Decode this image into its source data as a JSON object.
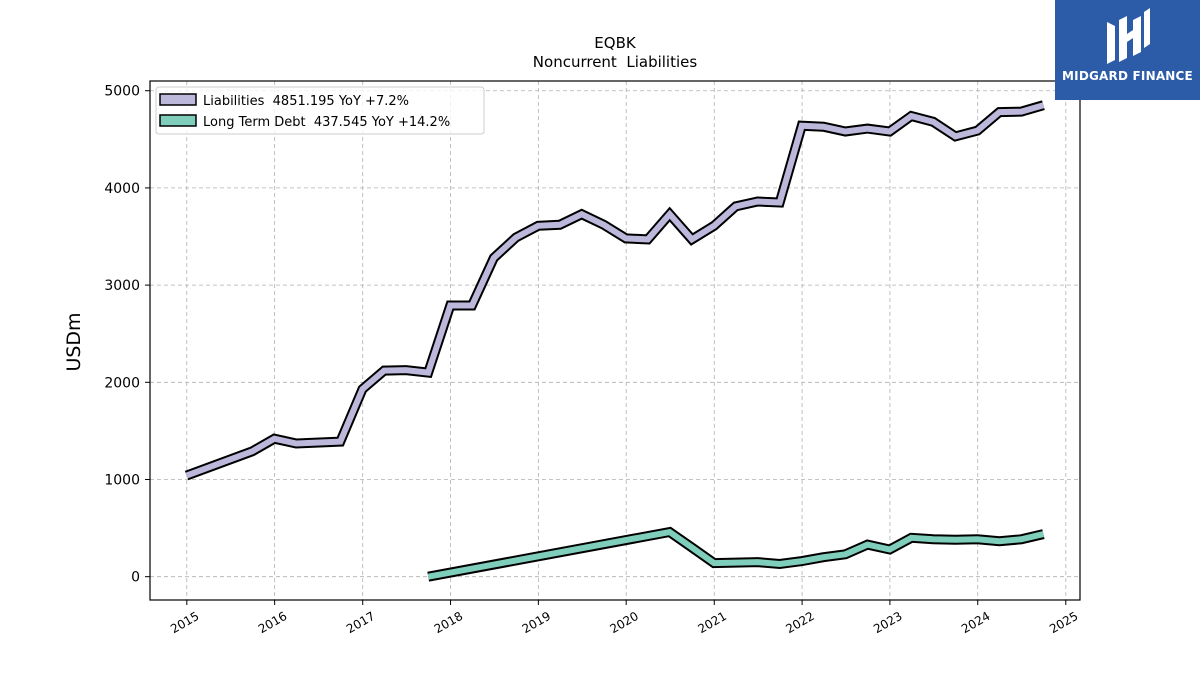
{
  "chart_data": {
    "type": "line",
    "title": "EQBK",
    "subtitle": "Noncurrent  Liabilities",
    "xlabel": "",
    "ylabel": "USDm",
    "xlim": [
      "2014-08-01",
      "2025-03-01"
    ],
    "ylim": [
      -240,
      5100
    ],
    "x_ticks": [
      "2015",
      "2016",
      "2017",
      "2018",
      "2019",
      "2020",
      "2021",
      "2022",
      "2023",
      "2024",
      "2025"
    ],
    "y_ticks": [
      "0",
      "1000",
      "2000",
      "3000",
      "4000",
      "5000"
    ],
    "grid": true,
    "legend_position": "top-left",
    "series": [
      {
        "name": "Liabilities",
        "legend_label": "Liabilities  4851.195 YoY +7.2%",
        "color": "#bcb8dc",
        "points": [
          [
            "2014-12-31",
            1040
          ],
          [
            "2015-09-30",
            1290
          ],
          [
            "2015-12-31",
            1420
          ],
          [
            "2016-03-31",
            1370
          ],
          [
            "2016-09-30",
            1390
          ],
          [
            "2016-12-31",
            1930
          ],
          [
            "2017-03-31",
            2120
          ],
          [
            "2017-06-30",
            2125
          ],
          [
            "2017-09-30",
            2100
          ],
          [
            "2017-12-31",
            2790
          ],
          [
            "2018-03-31",
            2790
          ],
          [
            "2018-06-30",
            3280
          ],
          [
            "2018-09-30",
            3490
          ],
          [
            "2018-12-31",
            3610
          ],
          [
            "2019-03-31",
            3620
          ],
          [
            "2019-06-30",
            3730
          ],
          [
            "2019-09-30",
            3620
          ],
          [
            "2019-12-31",
            3480
          ],
          [
            "2020-03-31",
            3470
          ],
          [
            "2020-06-30",
            3730
          ],
          [
            "2020-09-30",
            3470
          ],
          [
            "2020-12-31",
            3610
          ],
          [
            "2021-03-31",
            3810
          ],
          [
            "2021-06-30",
            3860
          ],
          [
            "2021-09-30",
            3850
          ],
          [
            "2021-12-31",
            4640
          ],
          [
            "2022-03-31",
            4630
          ],
          [
            "2022-06-30",
            4580
          ],
          [
            "2022-09-30",
            4610
          ],
          [
            "2022-12-31",
            4580
          ],
          [
            "2023-03-31",
            4740
          ],
          [
            "2023-06-30",
            4680
          ],
          [
            "2023-09-30",
            4530
          ],
          [
            "2023-12-31",
            4590
          ],
          [
            "2024-03-31",
            4780
          ],
          [
            "2024-06-30",
            4785
          ],
          [
            "2024-09-30",
            4851.195
          ]
        ]
      },
      {
        "name": "Long Term Debt",
        "legend_label": "Long Term Debt  437.545 YoY +14.2%",
        "color": "#7fcdbb",
        "points": [
          [
            "2017-09-30",
            0
          ],
          [
            "2020-06-30",
            460
          ],
          [
            "2020-09-30",
            300
          ],
          [
            "2020-12-31",
            140
          ],
          [
            "2021-06-30",
            150
          ],
          [
            "2021-09-30",
            130
          ],
          [
            "2021-12-31",
            160
          ],
          [
            "2022-03-31",
            200
          ],
          [
            "2022-06-30",
            230
          ],
          [
            "2022-09-30",
            330
          ],
          [
            "2022-12-31",
            280
          ],
          [
            "2023-03-31",
            400
          ],
          [
            "2023-06-30",
            385
          ],
          [
            "2023-09-30",
            380
          ],
          [
            "2023-12-31",
            385
          ],
          [
            "2024-03-31",
            365
          ],
          [
            "2024-06-30",
            385
          ],
          [
            "2024-09-30",
            437.545
          ]
        ]
      }
    ]
  },
  "logo": {
    "text": "MIDGARD FINANCE",
    "icon": "midgard-logo-icon",
    "background": "#2c5ba8"
  }
}
